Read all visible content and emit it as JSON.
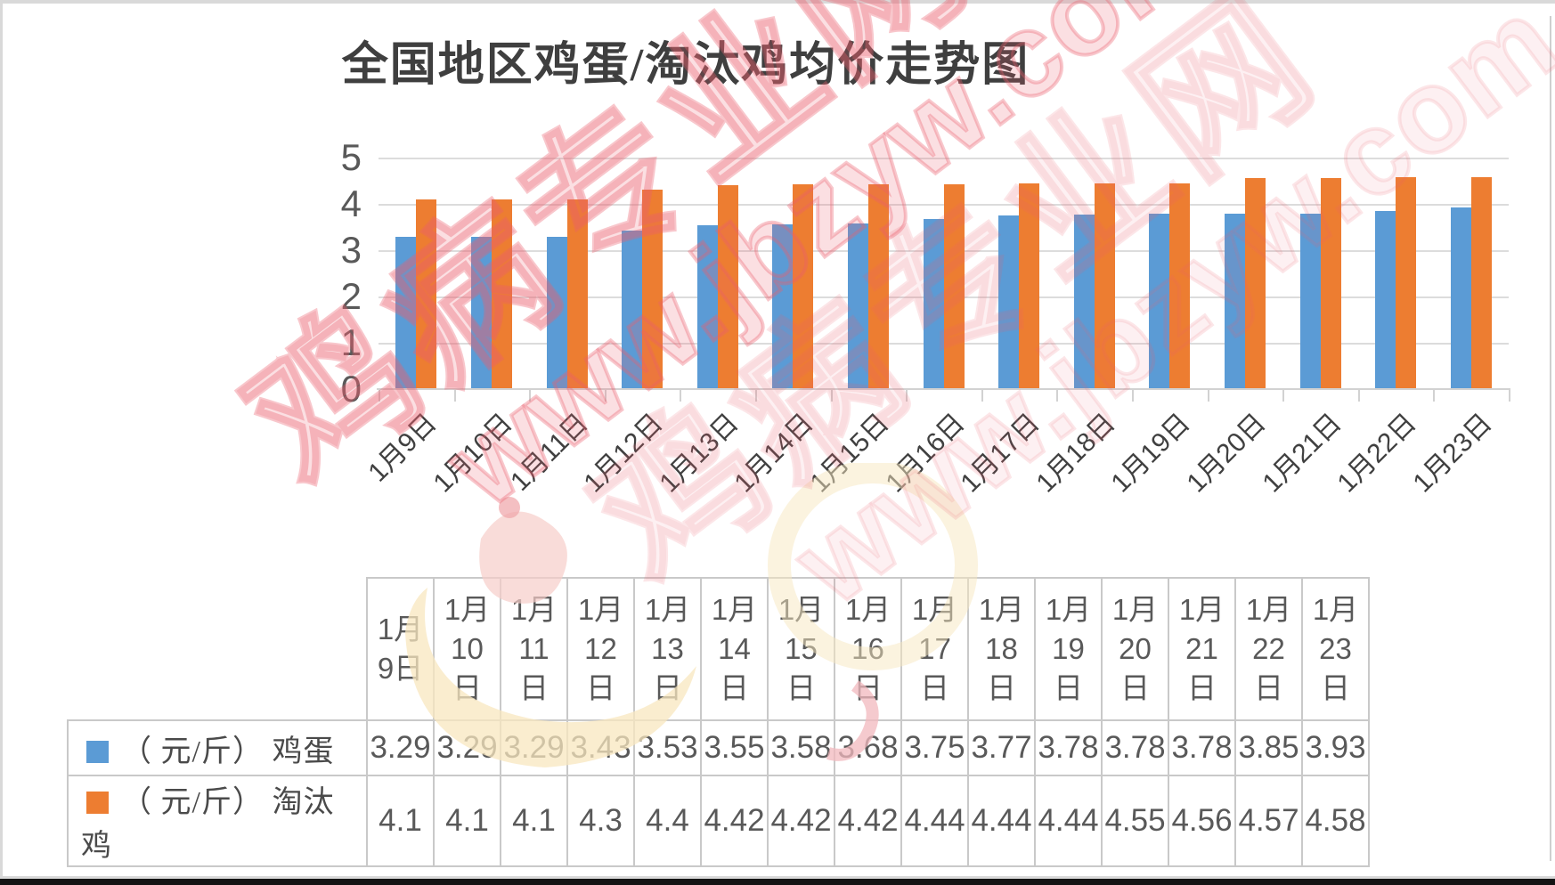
{
  "page": {
    "title": "全国地区鸡蛋/淘汰鸡均价走势图"
  },
  "chart_data": {
    "type": "bar",
    "title": "全国地区鸡蛋/淘汰鸡均价走势图",
    "categories": [
      "1月9日",
      "1月10日",
      "1月11日",
      "1月12日",
      "1月13日",
      "1月14日",
      "1月15日",
      "1月16日",
      "1月17日",
      "1月18日",
      "1月19日",
      "1月20日",
      "1月21日",
      "1月22日",
      "1月23日"
    ],
    "series": [
      {
        "name": "鸡蛋",
        "legend_label": "（ 元/斤） 鸡蛋",
        "unit": "元/斤",
        "color": "#5B9BD5",
        "values": [
          3.29,
          3.29,
          3.29,
          3.43,
          3.53,
          3.55,
          3.58,
          3.68,
          3.75,
          3.77,
          3.78,
          3.78,
          3.78,
          3.85,
          3.93
        ]
      },
      {
        "name": "淘汰鸡",
        "legend_label": "（ 元/斤） 淘汰鸡",
        "unit": "元/斤",
        "color": "#ED7D31",
        "values": [
          4.1,
          4.1,
          4.1,
          4.3,
          4.4,
          4.42,
          4.42,
          4.42,
          4.44,
          4.44,
          4.44,
          4.55,
          4.56,
          4.57,
          4.58
        ]
      }
    ],
    "xlabel": "",
    "ylabel": "",
    "ylim": [
      0,
      5
    ],
    "yticks": [
      0,
      1,
      2,
      3,
      4,
      5
    ],
    "grid": "horizontal",
    "legend_position": "table-rows-left"
  },
  "table": {
    "headers": [
      "1月\n9日",
      "1月\n10\n日",
      "1月\n11\n日",
      "1月\n12\n日",
      "1月\n13\n日",
      "1月\n14\n日",
      "1月\n15\n日",
      "1月\n16\n日",
      "1月\n17\n日",
      "1月\n18\n日",
      "1月\n19\n日",
      "1月\n20\n日",
      "1月\n21\n日",
      "1月\n22\n日",
      "1月\n23\n日"
    ]
  },
  "watermark": {
    "site_name": "鸡病专业网",
    "site_url": "www.jbzyw.com",
    "color": "#E06070"
  },
  "colors": {
    "egg_bar": "#5B9BD5",
    "culled_chicken_bar": "#ED7D31",
    "gridline": "#DCDCDC",
    "axis_text": "#595959",
    "table_border": "#C9C9C9",
    "table_text": "#595959",
    "title_text": "#3F3F3F",
    "watermark_pink": "#EB5F6E"
  }
}
